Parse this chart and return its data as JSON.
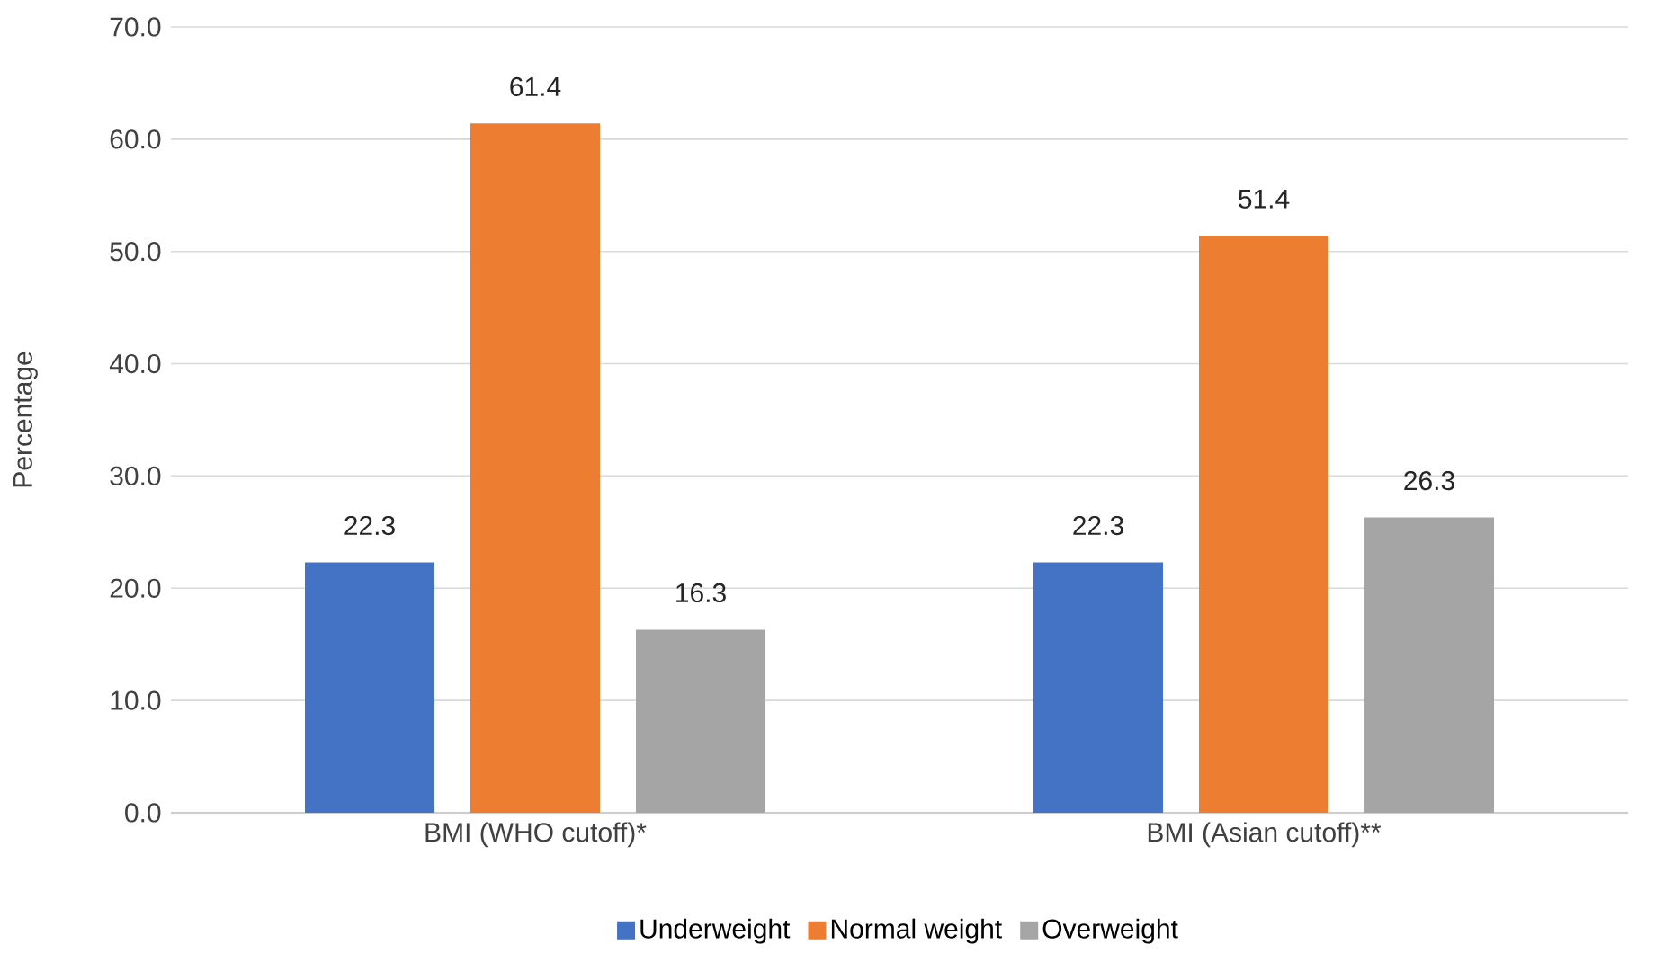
{
  "chart_data": {
    "type": "bar",
    "ylabel": "Percentage",
    "categories": [
      "BMI (WHO cutoff)*",
      "BMI (Asian cutoff)**"
    ],
    "series": [
      {
        "name": "Underweight",
        "color": "#4472c4",
        "values": [
          22.3,
          22.3
        ]
      },
      {
        "name": "Normal weight",
        "color": "#ed7d31",
        "values": [
          61.4,
          51.4
        ]
      },
      {
        "name": "Overweight",
        "color": "#a5a5a5",
        "values": [
          16.3,
          26.3
        ]
      }
    ],
    "ylim": [
      0,
      70
    ],
    "yticks": [
      {
        "value": 0,
        "label": "0.0"
      },
      {
        "value": 10,
        "label": "10.0"
      },
      {
        "value": 20,
        "label": "20.0"
      },
      {
        "value": 30,
        "label": "30.0"
      },
      {
        "value": 40,
        "label": "40.0"
      },
      {
        "value": 50,
        "label": "50.0"
      },
      {
        "value": 60,
        "label": "60.0"
      },
      {
        "value": 70,
        "label": "70.0"
      }
    ],
    "grid": "y",
    "legend": "bottom",
    "data_labels": true
  }
}
